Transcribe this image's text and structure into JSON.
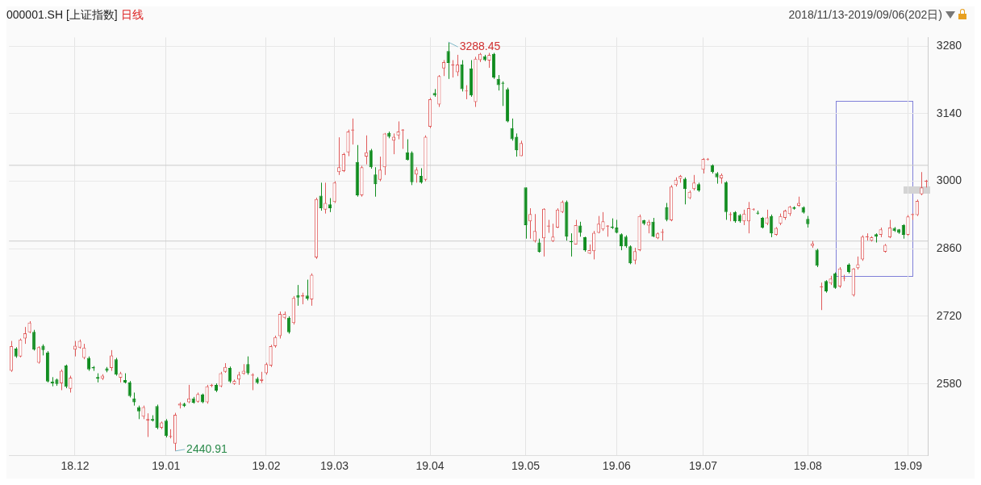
{
  "chart_data": {
    "type": "candlestick",
    "title": "000001.SH [上证指数]",
    "subtitle": "日线",
    "annotations": [
      "2018/11/13-2019/09/06(202日)",
      "3288.45",
      "2440.91"
    ],
    "categories": [
      null,
      null,
      null,
      null,
      null,
      null,
      null,
      null,
      null,
      null,
      null,
      null,
      null,
      null,
      "18.12",
      null,
      null,
      null,
      null,
      null,
      null,
      null,
      null,
      null,
      null,
      null,
      null,
      null,
      null,
      null,
      null,
      null,
      null,
      null,
      "19.01",
      null,
      null,
      null,
      null,
      null,
      null,
      null,
      null,
      null,
      null,
      null,
      null,
      null,
      null,
      null,
      null,
      null,
      null,
      null,
      null,
      null,
      "19.02",
      null,
      null,
      null,
      null,
      null,
      null,
      null,
      null,
      null,
      null,
      null,
      null,
      null,
      null,
      "19.03",
      null,
      null,
      null,
      null,
      null,
      null,
      null,
      null,
      null,
      null,
      null,
      null,
      null,
      null,
      null,
      null,
      null,
      null,
      null,
      null,
      "19.04",
      null,
      null,
      null,
      null,
      null,
      null,
      null,
      null,
      null,
      null,
      null,
      null,
      null,
      null,
      null,
      null,
      null,
      null,
      null,
      null,
      "19.05",
      null,
      null,
      null,
      null,
      null,
      null,
      null,
      null,
      null,
      null,
      null,
      null,
      null,
      null,
      null,
      null,
      null,
      null,
      null,
      "19.06",
      null,
      null,
      null,
      null,
      null,
      null,
      null,
      null,
      null,
      null,
      null,
      null,
      null,
      null,
      null,
      null,
      null,
      null,
      "19.07",
      null,
      null,
      null,
      null,
      null,
      null,
      null,
      null,
      null,
      null,
      null,
      null,
      null,
      null,
      null,
      null,
      null,
      null,
      null,
      null,
      null,
      null,
      "19.08",
      null,
      null,
      null,
      null,
      null,
      null,
      null,
      null,
      null,
      null,
      null,
      null,
      null,
      null,
      null,
      null,
      null,
      null,
      null,
      null,
      null,
      "19.09",
      null,
      null,
      null,
      null
    ],
    "ohlc": [
      [
        2607,
        2669,
        2605,
        2658
      ],
      [
        2653,
        2656,
        2634,
        2637
      ],
      [
        2637,
        2674,
        2635,
        2672
      ],
      [
        2674,
        2698,
        2663,
        2685
      ],
      [
        2687,
        2710,
        2685,
        2707
      ],
      [
        2688,
        2692,
        2649,
        2651
      ],
      [
        2624,
        2658,
        2622,
        2656
      ],
      [
        2659,
        2662,
        2639,
        2650
      ],
      [
        2645,
        2648,
        2583,
        2585
      ],
      [
        2585,
        2594,
        2575,
        2581
      ],
      [
        2589,
        2591,
        2576,
        2580
      ],
      [
        2581,
        2610,
        2567,
        2607
      ],
      [
        2618,
        2620,
        2571,
        2574
      ],
      [
        2570,
        2597,
        2562,
        2593
      ],
      [
        2651,
        2669,
        2637,
        2659
      ],
      [
        2655,
        2672,
        2653,
        2669
      ],
      [
        2634,
        2663,
        2631,
        2655
      ],
      [
        2634,
        2637,
        2607,
        2610
      ],
      [
        2615,
        2617,
        2607,
        2612
      ],
      [
        2594,
        2602,
        2583,
        2591
      ],
      [
        2591,
        2600,
        2588,
        2597
      ],
      [
        2612,
        2615,
        2604,
        2607
      ],
      [
        2613,
        2650,
        2607,
        2639
      ],
      [
        2631,
        2634,
        2597,
        2599
      ],
      [
        2593,
        2605,
        2583,
        2602
      ],
      [
        2588,
        2602,
        2581,
        2583
      ],
      [
        2583,
        2586,
        2552,
        2555
      ],
      [
        2550,
        2562,
        2535,
        2542
      ],
      [
        2532,
        2535,
        2507,
        2523
      ],
      [
        2512,
        2535,
        2507,
        2532
      ],
      [
        2504,
        2519,
        2470,
        2507
      ],
      [
        2507,
        2515,
        2502,
        2504
      ],
      [
        2534,
        2537,
        2486,
        2489
      ],
      [
        2489,
        2502,
        2486,
        2500
      ],
      [
        2504,
        2507,
        2469,
        2472
      ],
      [
        2470,
        2486,
        2467,
        2472
      ],
      [
        2456,
        2520,
        2440.91,
        2516
      ],
      [
        2535,
        2542,
        2529,
        2539
      ],
      [
        2539,
        2541,
        2532,
        2534
      ],
      [
        2542,
        2578,
        2540,
        2550
      ],
      [
        2550,
        2553,
        2539,
        2541
      ],
      [
        2543,
        2562,
        2541,
        2559
      ],
      [
        2558,
        2560,
        2540,
        2542
      ],
      [
        2542,
        2578,
        2539,
        2575
      ],
      [
        2576,
        2580,
        2573,
        2578
      ],
      [
        2578,
        2581,
        2563,
        2566
      ],
      [
        2575,
        2605,
        2573,
        2602
      ],
      [
        2605,
        2623,
        2603,
        2615
      ],
      [
        2613,
        2616,
        2582,
        2585
      ],
      [
        2580,
        2589,
        2578,
        2586
      ],
      [
        2589,
        2605,
        2578,
        2599
      ],
      [
        2601,
        2621,
        2599,
        2607
      ],
      [
        2621,
        2637,
        2599,
        2602
      ],
      [
        2597,
        2602,
        2567,
        2599
      ],
      [
        2591,
        2594,
        2580,
        2582
      ],
      [
        2586,
        2605,
        2582,
        2590
      ],
      [
        2602,
        2624,
        2599,
        2621
      ],
      [
        2618,
        2661,
        2615,
        2658
      ],
      [
        2658,
        2680,
        2655,
        2677
      ],
      [
        2679,
        2730,
        2674,
        2725
      ],
      [
        2717,
        2730,
        2714,
        2725
      ],
      [
        2717,
        2720,
        2684,
        2687
      ],
      [
        2706,
        2762,
        2703,
        2758
      ],
      [
        2764,
        2785,
        2742,
        2759
      ],
      [
        2761,
        2769,
        2745,
        2764
      ],
      [
        2763,
        2796,
        2753,
        2757
      ],
      [
        2755,
        2809,
        2742,
        2806
      ],
      [
        2842,
        2966,
        2839,
        2963
      ],
      [
        2970,
        2997,
        2939,
        2944
      ],
      [
        2941,
        2997,
        2933,
        2955
      ],
      [
        2952,
        2965,
        2936,
        2944
      ],
      [
        2957,
        3000,
        2955,
        2997
      ],
      [
        3019,
        3091,
        3013,
        3029
      ],
      [
        3021,
        3059,
        3019,
        3056
      ],
      [
        3060,
        3107,
        3052,
        3103
      ],
      [
        3105,
        3130,
        3076,
        3107
      ],
      [
        3040,
        3075,
        2968,
        2971
      ],
      [
        2971,
        3032,
        2968,
        3029
      ],
      [
        3051,
        3095,
        3035,
        3060
      ],
      [
        3064,
        3067,
        3026,
        3029
      ],
      [
        3014,
        3029,
        2968,
        2994
      ],
      [
        3003,
        3051,
        3000,
        3024
      ],
      [
        3029,
        3100,
        3013,
        3099
      ],
      [
        3100,
        3103,
        3089,
        3092
      ],
      [
        3084,
        3099,
        3056,
        3092
      ],
      [
        3095,
        3124,
        3087,
        3103
      ],
      [
        3105,
        3108,
        3067,
        3107
      ],
      [
        3060,
        3087,
        3043,
        3044
      ],
      [
        3059,
        3062,
        2992,
        2998
      ],
      [
        3014,
        3029,
        2997,
        3024
      ],
      [
        3011,
        3027,
        2995,
        2997
      ],
      [
        3003,
        3095,
        3000,
        3092
      ],
      [
        3113,
        3173,
        3110,
        3170
      ],
      [
        3183,
        3191,
        3175,
        3178
      ],
      [
        3159,
        3220,
        3154,
        3218
      ],
      [
        3234,
        3251,
        3218,
        3247
      ],
      [
        3270,
        3288.45,
        3212,
        3245
      ],
      [
        3240,
        3251,
        3215,
        3242
      ],
      [
        3226,
        3262,
        3218,
        3242
      ],
      [
        3242,
        3251,
        3186,
        3191
      ],
      [
        3186,
        3199,
        3170,
        3188
      ],
      [
        3234,
        3251,
        3175,
        3178
      ],
      [
        3164,
        3258,
        3154,
        3254
      ],
      [
        3251,
        3266,
        3247,
        3264
      ],
      [
        3259,
        3262,
        3249,
        3251
      ],
      [
        3250,
        3266,
        3235,
        3262
      ],
      [
        3264,
        3266,
        3212,
        3215
      ],
      [
        3212,
        3220,
        3188,
        3199
      ],
      [
        3204,
        3207,
        3156,
        3202
      ],
      [
        3191,
        3194,
        3122,
        3124
      ],
      [
        3110,
        3130,
        3084,
        3087
      ],
      [
        3092,
        3099,
        3051,
        3064
      ],
      [
        3052,
        3084,
        3052,
        3079
      ],
      [
        2987,
        2987,
        2881,
        2909
      ],
      [
        2917,
        2944,
        2881,
        2932
      ],
      [
        2876,
        2932,
        2873,
        2897
      ],
      [
        2873,
        2881,
        2852,
        2854
      ],
      [
        2882,
        2944,
        2844,
        2943
      ],
      [
        2906,
        2920,
        2893,
        2908
      ],
      [
        2876,
        2912,
        2874,
        2885
      ],
      [
        2904,
        2944,
        2903,
        2941
      ],
      [
        2936,
        2960,
        2934,
        2957
      ],
      [
        2957,
        2960,
        2877,
        2885
      ],
      [
        2876,
        2892,
        2844,
        2874
      ],
      [
        2869,
        2920,
        2869,
        2909
      ],
      [
        2908,
        2916,
        2885,
        2893
      ],
      [
        2884,
        2885,
        2854,
        2857
      ],
      [
        2850,
        2869,
        2849,
        2857
      ],
      [
        2855,
        2897,
        2838,
        2893
      ],
      [
        2893,
        2928,
        2892,
        2912
      ],
      [
        2900,
        2936,
        2897,
        2917
      ],
      [
        2906,
        2909,
        2885,
        2908
      ],
      [
        2906,
        2923,
        2901,
        2903
      ],
      [
        2904,
        2920,
        2892,
        2893
      ],
      [
        2890,
        2892,
        2857,
        2865
      ],
      [
        2885,
        2888,
        2862,
        2865
      ],
      [
        2865,
        2867,
        2828,
        2830
      ],
      [
        2836,
        2862,
        2828,
        2855
      ],
      [
        2857,
        2931,
        2855,
        2928
      ],
      [
        2919,
        2920,
        2909,
        2912
      ],
      [
        2908,
        2920,
        2892,
        2916
      ],
      [
        2916,
        2924,
        2884,
        2885
      ],
      [
        2882,
        2894,
        2880,
        2892
      ],
      [
        2893,
        2901,
        2877,
        2895
      ],
      [
        2946,
        2955,
        2917,
        2920
      ],
      [
        2919,
        2992,
        2917,
        2989
      ],
      [
        2992,
        3008,
        2989,
        3003
      ],
      [
        3005,
        3013,
        2997,
        3011
      ],
      [
        3005,
        3008,
        2952,
        2984
      ],
      [
        2965,
        2981,
        2963,
        2978
      ],
      [
        2984,
        3013,
        2981,
        2997
      ],
      [
        2994,
        2997,
        2978,
        2981
      ],
      [
        3024,
        3048,
        3016,
        3046
      ],
      [
        3045,
        3048,
        3043,
        3046
      ],
      [
        3033,
        3035,
        3016,
        3019
      ],
      [
        3017,
        3019,
        2995,
        3008
      ],
      [
        3006,
        3016,
        2995,
        3013
      ],
      [
        2998,
        3000,
        2920,
        2936
      ],
      [
        2930,
        2936,
        2917,
        2932
      ],
      [
        2936,
        2938,
        2914,
        2917
      ],
      [
        2930,
        2932,
        2914,
        2917
      ],
      [
        2917,
        2941,
        2909,
        2933
      ],
      [
        2917,
        2957,
        2892,
        2944
      ],
      [
        2941,
        2944,
        2939,
        2943
      ],
      [
        2935,
        2939,
        2931,
        2933
      ],
      [
        2924,
        2926,
        2902,
        2904
      ],
      [
        2912,
        2941,
        2909,
        2925
      ],
      [
        2928,
        2931,
        2884,
        2892
      ],
      [
        2889,
        2905,
        2887,
        2903
      ],
      [
        2912,
        2933,
        2909,
        2928
      ],
      [
        2924,
        2941,
        2920,
        2939
      ],
      [
        2932,
        2949,
        2928,
        2947
      ],
      [
        2946,
        2948,
        2941,
        2943
      ],
      [
        2949,
        2968,
        2947,
        2955
      ],
      [
        2946,
        2948,
        2933,
        2935
      ],
      [
        2922,
        2928,
        2904,
        2911
      ],
      [
        2866,
        2876,
        2862,
        2871
      ],
      [
        2858,
        2860,
        2822,
        2825
      ],
      [
        2780,
        2790,
        2733,
        2782
      ],
      [
        2793,
        2795,
        2769,
        2772
      ],
      [
        2788,
        2804,
        2785,
        2798
      ],
      [
        2809,
        2811,
        2777,
        2779
      ],
      [
        2782,
        2822,
        2779,
        2819
      ],
      [
        2798,
        2806,
        2793,
        2800
      ],
      [
        2827,
        2830,
        2809,
        2812
      ],
      [
        2764,
        2820,
        2761,
        2819
      ],
      [
        2820,
        2844,
        2817,
        2828
      ],
      [
        2838,
        2888,
        2835,
        2885
      ],
      [
        2884,
        2892,
        2877,
        2886
      ],
      [
        2877,
        2886,
        2875,
        2884
      ],
      [
        2890,
        2892,
        2873,
        2885
      ],
      [
        2889,
        2904,
        2884,
        2900
      ],
      [
        2854,
        2870,
        2852,
        2868
      ],
      [
        2884,
        2920,
        2882,
        2904
      ],
      [
        2903,
        2905,
        2895,
        2897
      ],
      [
        2900,
        2901,
        2891,
        2893
      ],
      [
        2909,
        2911,
        2881,
        2889
      ],
      [
        2889,
        2930,
        2887,
        2927
      ],
      [
        2930,
        2933,
        2920,
        2932
      ],
      [
        2930,
        2962,
        2928,
        2959
      ],
      [
        2973,
        3019,
        2971,
        2987
      ],
      [
        2999,
        3003,
        2987,
        3001
      ]
    ],
    "colors": [
      "#e05a5a",
      "#0f8c1e",
      "#e05a5a",
      "#e05a5a",
      "#e05a5a",
      "#0f8c1e",
      "#e05a5a",
      "#0f8c1e",
      "#0f8c1e",
      "#0f8c1e",
      "#0f8c1e",
      "#e05a5a",
      "#0f8c1e",
      "#e05a5a",
      "#e05a5a",
      "#e05a5a",
      "#e05a5a",
      "#0f8c1e",
      "#0f8c1e",
      "#0f8c1e",
      "#e05a5a",
      "#0f8c1e",
      "#e05a5a",
      "#0f8c1e",
      "#e05a5a",
      "#0f8c1e",
      "#0f8c1e",
      "#0f8c1e",
      "#0f8c1e",
      "#e05a5a",
      "#e05a5a",
      "#0f8c1e",
      "#0f8c1e",
      "#e05a5a",
      "#0f8c1e",
      "#e05a5a",
      "#e05a5a",
      "#e05a5a",
      "#0f8c1e",
      "#e05a5a",
      "#0f8c1e",
      "#e05a5a",
      "#0f8c1e",
      "#e05a5a",
      "#e05a5a",
      "#0f8c1e",
      "#e05a5a",
      "#e05a5a",
      "#0f8c1e",
      "#e05a5a",
      "#e05a5a",
      "#e05a5a",
      "#0f8c1e",
      "#e05a5a",
      "#0f8c1e",
      "#e05a5a",
      "#e05a5a",
      "#e05a5a",
      "#e05a5a",
      "#e05a5a",
      "#e05a5a",
      "#0f8c1e",
      "#e05a5a",
      "#0f8c1e",
      "#e05a5a",
      "#0f8c1e",
      "#e05a5a",
      "#e05a5a",
      "#0f8c1e",
      "#e05a5a",
      "#0f8c1e",
      "#e05a5a",
      "#e05a5a",
      "#e05a5a",
      "#e05a5a",
      "#e05a5a",
      "#0f8c1e",
      "#e05a5a",
      "#e05a5a",
      "#0f8c1e",
      "#0f8c1e",
      "#e05a5a",
      "#e05a5a",
      "#0f8c1e",
      "#e05a5a",
      "#e05a5a",
      "#e05a5a",
      "#0f8c1e",
      "#0f8c1e",
      "#e05a5a",
      "#0f8c1e",
      "#e05a5a",
      "#e05a5a",
      "#0f8c1e",
      "#e05a5a",
      "#e05a5a",
      "#0f8c1e",
      "#e05a5a",
      "#e05a5a",
      "#0f8c1e",
      "#e05a5a",
      "#0f8c1e",
      "#e05a5a",
      "#e05a5a",
      "#0f8c1e",
      "#e05a5a",
      "#0f8c1e",
      "#0f8c1e",
      "#0f8c1e",
      "#0f8c1e",
      "#0f8c1e",
      "#0f8c1e",
      "#e05a5a",
      "#0f8c1e",
      "#e05a5a",
      "#e05a5a",
      "#0f8c1e",
      "#e05a5a",
      "#e05a5a",
      "#e05a5a",
      "#e05a5a",
      "#e05a5a",
      "#0f8c1e",
      "#0f8c1e",
      "#e05a5a",
      "#0f8c1e",
      "#0f8c1e",
      "#e05a5a",
      "#e05a5a",
      "#e05a5a",
      "#e05a5a",
      "#e05a5a",
      "#0f8c1e",
      "#0f8c1e",
      "#0f8c1e",
      "#0f8c1e",
      "#0f8c1e",
      "#e05a5a",
      "#e05a5a",
      "#0f8c1e",
      "#e05a5a",
      "#0f8c1e",
      "#e05a5a",
      "#e05a5a",
      "#0f8c1e",
      "#e05a5a",
      "#e05a5a",
      "#e05a5a",
      "#0f8c1e",
      "#e05a5a",
      "#e05a5a",
      "#0f8c1e",
      "#e05a5a",
      "#e05a5a",
      "#0f8c1e",
      "#0f8c1e",
      "#e05a5a",
      "#0f8c1e",
      "#e05a5a",
      "#0f8c1e",
      "#0f8c1e",
      "#e05a5a",
      "#e05a5a",
      "#e05a5a",
      "#0f8c1e",
      "#0f8c1e",
      "#e05a5a",
      "#0f8c1e",
      "#e05a5a",
      "#e05a5a",
      "#e05a5a",
      "#e05a5a",
      "#0f8c1e",
      "#e05a5a",
      "#0f8c1e",
      "#0f8c1e",
      "#e05a5a",
      "#0f8c1e",
      "#e05a5a",
      "#0f8c1e",
      "#e05a5a",
      "#0f8c1e",
      "#e05a5a",
      "#e05a5a",
      "#0f8c1e",
      "#e05a5a",
      "#e05a5a",
      "#e05a5a",
      "#e05a5a",
      "#e05a5a",
      "#0f8c1e",
      "#e05a5a",
      "#e05a5a",
      "#e05a5a",
      "#0f8c1e",
      "#0f8c1e",
      "#0f8c1e",
      "#e05a5a",
      "#e05a5a",
      "#e05a5a",
      "#e05a5a",
      "#e05a5a"
    ],
    "ylim": [
      2432,
      3298
    ],
    "yticks": [
      2580,
      2720,
      2860,
      3000,
      3140,
      3280
    ],
    "ref_lines": [
      {
        "axis": "y",
        "value": 3033,
        "color": "#cccccc"
      },
      {
        "axis": "y",
        "value": 2876,
        "color": "#cccccc"
      }
    ],
    "grid": true,
    "legend": false
  }
}
